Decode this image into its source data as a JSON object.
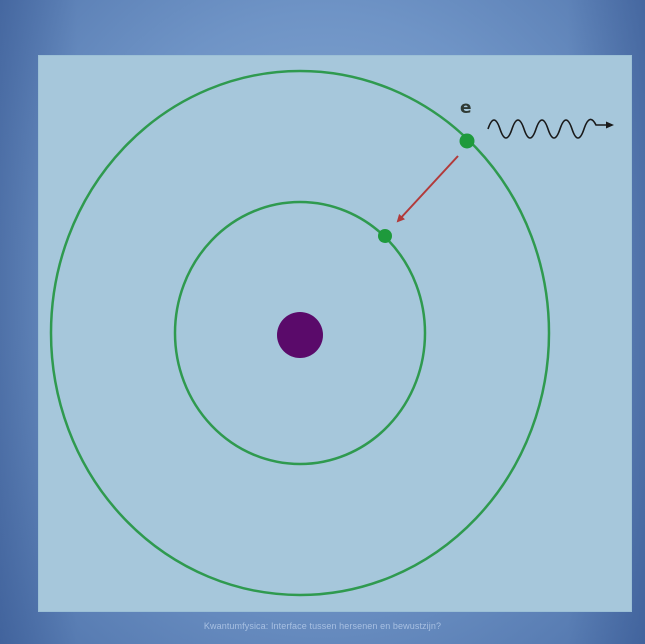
{
  "diagram": {
    "electron_label": "e",
    "colors": {
      "background": "#6f94c6",
      "panel": "#a6c7db",
      "orbit": "#2f9a4f",
      "electron": "#1e9a3c",
      "nucleus": "#5a0a6a",
      "transition_arrow": "#b23a3a",
      "photon_wave": "#1a1a1a"
    },
    "icons": [
      "nucleus-circle",
      "electron-dot",
      "photon-wave-arrow",
      "transition-arrow"
    ]
  },
  "footer": {
    "caption": "Kwantumfysica: Interface tussen hersenen en bewustzijn?"
  }
}
